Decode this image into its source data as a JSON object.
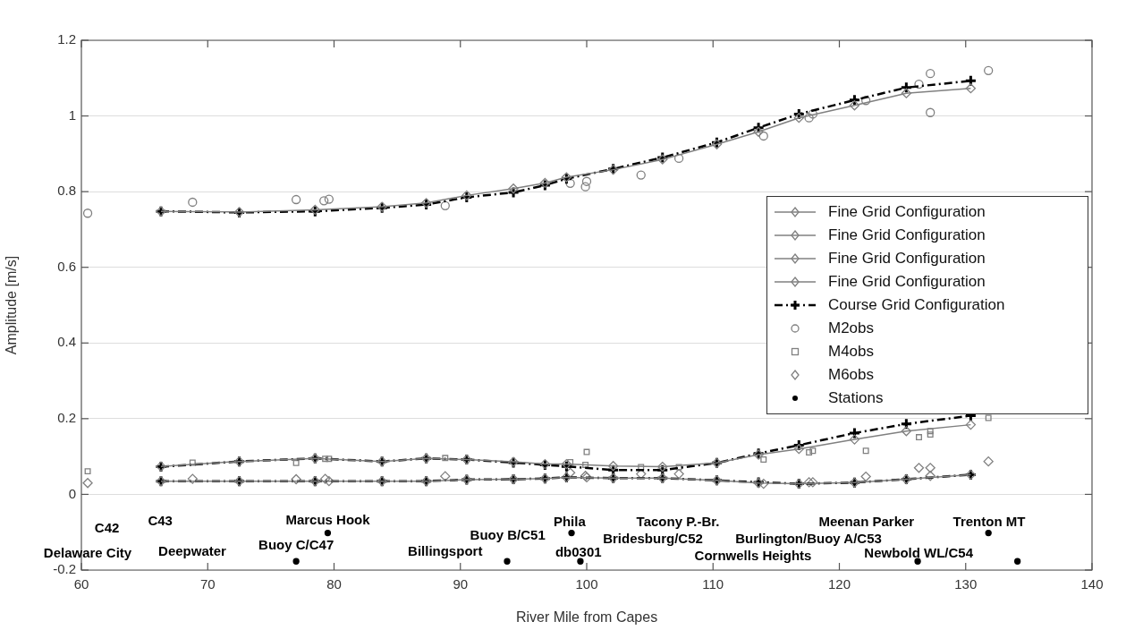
{
  "chart_data": {
    "type": "line",
    "xlabel": "River Mile from Capes",
    "ylabel": "Amplitude [m/s]",
    "xlim": [
      60,
      140
    ],
    "xticks": [
      60,
      70,
      80,
      90,
      100,
      110,
      120,
      130,
      140
    ],
    "ylim": [
      -0.2,
      1.2
    ],
    "yticks": [
      -0.2,
      0,
      0.2,
      0.4,
      0.6,
      0.8,
      1,
      1.2
    ],
    "grid": "y",
    "legend": "right",
    "series": [
      {
        "name": "Fine Grid Configuration",
        "type": "line",
        "color": "#808080",
        "marker": "diamond",
        "line_style": "solid",
        "x": [
          66.3,
          72.5,
          78.5,
          83.8,
          87.3,
          90.5,
          94.2,
          96.7,
          98.4,
          102.1,
          106.0,
          110.3,
          113.6,
          116.8,
          121.2,
          125.3,
          130.4
        ],
        "values": [
          0.748,
          0.746,
          0.752,
          0.76,
          0.77,
          0.79,
          0.808,
          0.823,
          0.838,
          0.858,
          0.885,
          0.925,
          0.958,
          0.995,
          1.028,
          1.06,
          1.073
        ]
      },
      {
        "name": "Fine Grid Configuration",
        "type": "line",
        "color": "#808080",
        "marker": "diamond",
        "line_style": "solid",
        "x": [
          66.3,
          72.5,
          78.5,
          83.8,
          87.3,
          90.5,
          94.2,
          96.7,
          98.4,
          102.1,
          106.0,
          110.3,
          113.6,
          116.8,
          121.2,
          125.3,
          130.4
        ],
        "values": [
          0.074,
          0.087,
          0.095,
          0.087,
          0.095,
          0.092,
          0.086,
          0.08,
          0.08,
          0.075,
          0.073,
          0.083,
          0.105,
          0.12,
          0.145,
          0.167,
          0.184
        ]
      },
      {
        "name": "Fine Grid Configuration",
        "type": "line",
        "color": "#808080",
        "marker": "diamond",
        "line_style": "solid",
        "x": [
          66.3,
          72.5,
          78.5,
          83.8,
          87.3,
          90.5,
          94.2,
          96.7,
          98.4,
          102.1,
          106.0,
          110.3,
          113.6,
          116.8,
          121.2,
          125.3,
          130.4
        ],
        "values": [
          0.035,
          0.035,
          0.035,
          0.035,
          0.035,
          0.039,
          0.04,
          0.042,
          0.045,
          0.043,
          0.043,
          0.037,
          0.03,
          0.028,
          0.031,
          0.04,
          0.052
        ]
      },
      {
        "name": "Fine Grid Configuration",
        "color": "#808080",
        "marker": "diamond",
        "line_style": "solid"
      },
      {
        "name": "Course Grid Configuration",
        "type": "line",
        "color": "#000000",
        "marker": "cross",
        "line_style": "dashed",
        "x": [
          66.3,
          72.5,
          78.5,
          83.8,
          87.3,
          90.5,
          94.2,
          96.7,
          98.4,
          102.1,
          106.0,
          110.3,
          113.6,
          116.8,
          121.2,
          125.3,
          130.4
        ],
        "values": [
          0.748,
          0.745,
          0.748,
          0.757,
          0.766,
          0.785,
          0.798,
          0.817,
          0.834,
          0.86,
          0.89,
          0.93,
          0.969,
          1.005,
          1.042,
          1.075,
          1.093
        ]
      },
      {
        "type": "line",
        "color": "#000000",
        "marker": "cross",
        "line_style": "dashed",
        "x": [
          66.3,
          72.5,
          78.5,
          83.8,
          87.3,
          90.5,
          94.2,
          96.7,
          98.4,
          102.1,
          106.0,
          110.3,
          113.6,
          116.8,
          121.2,
          125.3,
          130.4
        ],
        "values": [
          0.073,
          0.087,
          0.095,
          0.087,
          0.095,
          0.092,
          0.084,
          0.078,
          0.074,
          0.064,
          0.064,
          0.083,
          0.108,
          0.13,
          0.162,
          0.186,
          0.208
        ]
      },
      {
        "type": "line",
        "color": "#000000",
        "marker": "cross",
        "line_style": "dashed",
        "x": [
          66.3,
          72.5,
          78.5,
          83.8,
          87.3,
          90.5,
          94.2,
          96.7,
          98.4,
          102.1,
          106.0,
          110.3,
          113.6,
          116.8,
          121.2,
          125.3,
          130.4
        ],
        "values": [
          0.035,
          0.035,
          0.035,
          0.035,
          0.035,
          0.039,
          0.04,
          0.042,
          0.045,
          0.043,
          0.043,
          0.037,
          0.032,
          0.028,
          0.031,
          0.04,
          0.052
        ]
      },
      {
        "name": "M2obs",
        "type": "scatter",
        "color": "#808080",
        "marker": "circle",
        "x": [
          60.5,
          68.8,
          77.0,
          79.2,
          79.6,
          88.8,
          98.7,
          99.9,
          100.0,
          104.3,
          107.3,
          114.0,
          117.6,
          117.9,
          122.1,
          126.3,
          127.2,
          127.2,
          131.8
        ],
        "values": [
          0.743,
          0.772,
          0.779,
          0.776,
          0.78,
          0.763,
          0.822,
          0.813,
          0.827,
          0.844,
          0.888,
          0.947,
          0.995,
          1.005,
          1.041,
          1.084,
          1.112,
          1.009,
          1.12
        ]
      },
      {
        "name": "M4obs",
        "type": "scatter",
        "color": "#808080",
        "marker": "square",
        "x": [
          60.5,
          68.8,
          77.0,
          79.3,
          79.6,
          88.8,
          98.7,
          99.9,
          100.0,
          104.3,
          107.3,
          114.0,
          117.6,
          117.9,
          122.1,
          126.3,
          127.2,
          127.2,
          131.8
        ],
        "values": [
          0.061,
          0.084,
          0.083,
          0.094,
          0.094,
          0.096,
          0.085,
          0.078,
          0.112,
          0.072,
          0.072,
          0.092,
          0.111,
          0.115,
          0.115,
          0.151,
          0.158,
          0.167,
          0.202
        ]
      },
      {
        "name": "M6obs",
        "type": "scatter",
        "color": "#808080",
        "marker": "diamond",
        "x": [
          60.5,
          68.8,
          77.0,
          79.3,
          79.6,
          88.8,
          98.7,
          99.9,
          100.0,
          104.3,
          107.3,
          114.0,
          117.6,
          117.9,
          122.1,
          126.3,
          127.2,
          127.2,
          131.8
        ],
        "values": [
          0.03,
          0.041,
          0.04,
          0.041,
          0.035,
          0.048,
          0.057,
          0.049,
          0.045,
          0.054,
          0.054,
          0.028,
          0.032,
          0.032,
          0.047,
          0.07,
          0.07,
          0.049,
          0.087
        ]
      },
      {
        "name": "Stations",
        "type": "scatter",
        "color": "#000000",
        "marker": "point",
        "x": [
          77.0,
          79.5,
          93.7,
          98.8,
          99.5,
          126.2,
          131.8,
          134.1
        ],
        "values": [
          -0.177,
          -0.102,
          -0.177,
          -0.102,
          -0.177,
          -0.177,
          -0.102,
          -0.177
        ]
      }
    ],
    "annotations": [
      "Delaware City",
      "C42",
      "C43",
      "Deepwater",
      "Marcus Hook",
      "Buoy C/C47",
      "Billingsport",
      "Buoy B/C51",
      "Phila",
      "db0301",
      "Bridesburg/C52",
      "Tacony P.-Br.",
      "Burlington/Buoy A/C53",
      "Cornwells Heights",
      "Meenan Parker",
      "Newbold WL/C54",
      "Trenton MT"
    ]
  }
}
